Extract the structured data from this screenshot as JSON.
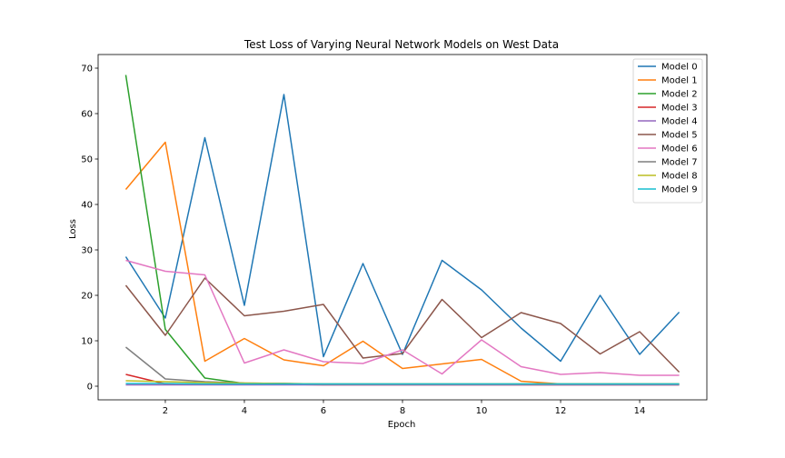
{
  "chart_data": {
    "type": "line",
    "title": "Test Loss of Varying Neural Network Models on West Data",
    "xlabel": "Epoch",
    "ylabel": "Loss",
    "x": [
      1,
      2,
      3,
      4,
      5,
      6,
      7,
      8,
      9,
      10,
      11,
      12,
      13,
      14,
      15
    ],
    "xlim": [
      0.3,
      15.7
    ],
    "ylim": [
      -3,
      73
    ],
    "xticks": [
      2,
      4,
      6,
      8,
      10,
      12,
      14
    ],
    "yticks": [
      0,
      10,
      20,
      30,
      40,
      50,
      60,
      70
    ],
    "grid": false,
    "legend_position": "top-right",
    "series": [
      {
        "name": "Model 0",
        "color": "#1f77b4",
        "values": [
          28.5,
          15.0,
          54.7,
          17.8,
          64.2,
          6.5,
          27.0,
          7.0,
          27.7,
          21.2,
          12.8,
          5.5,
          20.0,
          7.0,
          16.3
        ]
      },
      {
        "name": "Model 1",
        "color": "#ff7f0e",
        "values": [
          43.3,
          53.7,
          5.5,
          10.5,
          5.8,
          4.5,
          9.9,
          3.9,
          4.9,
          5.9,
          1.1,
          0.5,
          0.5,
          0.5,
          0.5
        ]
      },
      {
        "name": "Model 2",
        "color": "#2ca02c",
        "values": [
          68.5,
          12.5,
          1.8,
          0.6,
          0.6,
          0.4,
          0.4,
          0.4,
          0.4,
          0.4,
          0.4,
          0.4,
          0.4,
          0.4,
          0.4
        ]
      },
      {
        "name": "Model 3",
        "color": "#d62728",
        "values": [
          2.6,
          0.5,
          0.4,
          0.4,
          0.4,
          0.3,
          0.3,
          0.3,
          0.3,
          0.3,
          0.3,
          0.3,
          0.3,
          0.3,
          0.3
        ]
      },
      {
        "name": "Model 4",
        "color": "#9467bd",
        "values": [
          0.3,
          0.3,
          0.3,
          0.3,
          0.3,
          0.3,
          0.3,
          0.3,
          0.3,
          0.3,
          0.3,
          0.3,
          0.3,
          0.3,
          0.3
        ]
      },
      {
        "name": "Model 5",
        "color": "#8c564b",
        "values": [
          22.2,
          11.2,
          23.8,
          15.5,
          16.5,
          18.0,
          6.2,
          7.2,
          19.1,
          10.7,
          16.2,
          13.8,
          7.1,
          12.0,
          3.1
        ]
      },
      {
        "name": "Model 6",
        "color": "#e377c2",
        "values": [
          27.7,
          25.3,
          24.5,
          5.1,
          8.0,
          5.4,
          5.0,
          8.0,
          2.7,
          10.2,
          4.3,
          2.6,
          3.0,
          2.4,
          2.4
        ]
      },
      {
        "name": "Model 7",
        "color": "#7f7f7f",
        "values": [
          8.6,
          1.6,
          1.0,
          0.7,
          0.6,
          0.5,
          0.5,
          0.5,
          0.5,
          0.5,
          0.5,
          0.5,
          0.5,
          0.5,
          0.5
        ]
      },
      {
        "name": "Model 8",
        "color": "#bcbd22",
        "values": [
          1.2,
          1.0,
          0.8,
          0.7,
          0.6,
          0.5,
          0.5,
          0.5,
          0.5,
          0.5,
          0.5,
          0.5,
          0.5,
          0.5,
          0.5
        ]
      },
      {
        "name": "Model 9",
        "color": "#17becf",
        "values": [
          0.6,
          0.6,
          0.5,
          0.5,
          0.5,
          0.5,
          0.5,
          0.5,
          0.5,
          0.5,
          0.5,
          0.5,
          0.5,
          0.5,
          0.5
        ]
      }
    ]
  }
}
